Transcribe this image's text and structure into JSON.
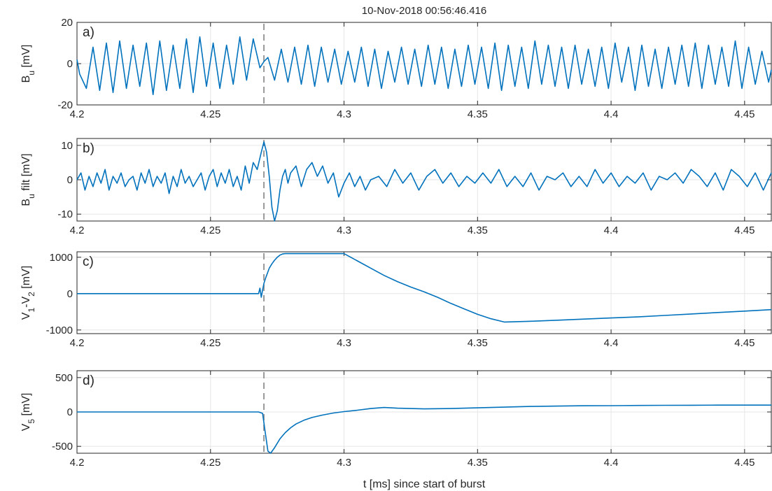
{
  "chart_data": {
    "title": "10-Nov-2018  00:56:46.416",
    "xlabel": "t [ms] since start of burst",
    "xlim": [
      4.2,
      4.46
    ],
    "xticks": [
      4.2,
      4.25,
      4.3,
      4.35,
      4.4,
      4.45
    ],
    "xtick_labels": [
      "4.2",
      "4.25",
      "4.3",
      "4.35",
      "4.4",
      "4.45"
    ],
    "marker_x": 4.27,
    "grid": true,
    "line_color": "#0072BD",
    "panels": [
      {
        "type": "line",
        "panel_label": "a)",
        "ylabel": "B_u [mV]",
        "ylabel_parts": {
          "base": "B",
          "sub": "u",
          "rest": " [mV]"
        },
        "ylim": [
          -20,
          20
        ],
        "yticks": [
          -20,
          0,
          20
        ],
        "ytick_labels": [
          "-20",
          "0",
          "20"
        ],
        "x": [
          4.2,
          4.201,
          4.2035,
          4.206,
          4.2085,
          4.211,
          4.2135,
          4.216,
          4.2185,
          4.221,
          4.2235,
          4.226,
          4.2285,
          4.231,
          4.2335,
          4.236,
          4.2385,
          4.241,
          4.2435,
          4.246,
          4.2485,
          4.251,
          4.2535,
          4.256,
          4.2585,
          4.261,
          4.2635,
          4.266,
          4.2685,
          4.27,
          4.2715,
          4.274,
          4.2765,
          4.279,
          4.2815,
          4.284,
          4.2865,
          4.289,
          4.2915,
          4.294,
          4.2965,
          4.299,
          4.3015,
          4.304,
          4.3065,
          4.309,
          4.3115,
          4.314,
          4.3165,
          4.319,
          4.3215,
          4.324,
          4.3265,
          4.329,
          4.3315,
          4.334,
          4.3365,
          4.339,
          4.3415,
          4.344,
          4.3465,
          4.349,
          4.3515,
          4.354,
          4.3565,
          4.359,
          4.3615,
          4.364,
          4.3665,
          4.369,
          4.3715,
          4.374,
          4.3765,
          4.379,
          4.3815,
          4.384,
          4.3865,
          4.389,
          4.3915,
          4.394,
          4.3965,
          4.399,
          4.4015,
          4.404,
          4.4065,
          4.409,
          4.4115,
          4.414,
          4.4165,
          4.419,
          4.4215,
          4.424,
          4.4265,
          4.429,
          4.4315,
          4.434,
          4.4365,
          4.439,
          4.4415,
          4.444,
          4.4465,
          4.449,
          4.4515,
          4.454,
          4.4565,
          4.459,
          4.46
        ],
        "y": [
          2,
          -5,
          -12,
          8,
          -13,
          10,
          -14,
          11,
          -12,
          9,
          -11,
          10,
          -15,
          11,
          -13,
          9,
          -12,
          12,
          -14,
          13,
          -11,
          10,
          -12,
          9,
          -10,
          13,
          -8,
          12,
          -2,
          1,
          3,
          -8,
          7,
          -9,
          8,
          -10,
          9,
          -11,
          8,
          -9,
          7,
          -10,
          6,
          -9,
          8,
          -11,
          7,
          -12,
          6,
          -9,
          8,
          -10,
          7,
          -11,
          9,
          -10,
          8,
          -12,
          7,
          -11,
          9,
          -10,
          8,
          -12,
          10,
          -13,
          9,
          -11,
          8,
          -12,
          11,
          -10,
          9,
          -11,
          8,
          -12,
          9,
          -10,
          7,
          -11,
          8,
          -12,
          10,
          -9,
          8,
          -13,
          9,
          -11,
          7,
          -12,
          8,
          -10,
          9,
          -11,
          10,
          -12,
          9,
          -10,
          8,
          -11,
          11,
          -12,
          8,
          -10,
          6,
          -9,
          -3
        ],
        "data_note": "approximate, read from the plot"
      },
      {
        "type": "line",
        "panel_label": "b)",
        "ylabel": "B_u filt [mV]",
        "ylabel_parts": {
          "base": "B",
          "sub": "u",
          "rest": " filt [mV]"
        },
        "ylim": [
          -12,
          12
        ],
        "yticks": [
          -10,
          0,
          10
        ],
        "ytick_labels": [
          "-10",
          "0",
          "10"
        ],
        "x": [
          4.2,
          4.2015,
          4.203,
          4.2045,
          4.206,
          4.2075,
          4.209,
          4.2105,
          4.212,
          4.2135,
          4.215,
          4.2165,
          4.218,
          4.2195,
          4.221,
          4.2225,
          4.224,
          4.2255,
          4.227,
          4.2285,
          4.23,
          4.2315,
          4.233,
          4.2345,
          4.236,
          4.2375,
          4.239,
          4.2405,
          4.242,
          4.2435,
          4.245,
          4.2465,
          4.248,
          4.2495,
          4.251,
          4.2525,
          4.254,
          4.2555,
          4.257,
          4.2585,
          4.26,
          4.2615,
          4.263,
          4.2645,
          4.266,
          4.2675,
          4.269,
          4.27,
          4.271,
          4.272,
          4.273,
          4.274,
          4.275,
          4.276,
          4.277,
          4.278,
          4.279,
          4.28,
          4.282,
          4.284,
          4.286,
          4.288,
          4.29,
          4.292,
          4.294,
          4.296,
          4.298,
          4.3,
          4.302,
          4.304,
          4.306,
          4.308,
          4.31,
          4.313,
          4.316,
          4.319,
          4.322,
          4.325,
          4.328,
          4.331,
          4.334,
          4.337,
          4.34,
          4.343,
          4.346,
          4.349,
          4.352,
          4.355,
          4.358,
          4.361,
          4.364,
          4.367,
          4.37,
          4.373,
          4.376,
          4.379,
          4.382,
          4.385,
          4.388,
          4.391,
          4.394,
          4.397,
          4.4,
          4.403,
          4.406,
          4.409,
          4.412,
          4.415,
          4.418,
          4.421,
          4.424,
          4.427,
          4.43,
          4.433,
          4.436,
          4.439,
          4.442,
          4.445,
          4.448,
          4.451,
          4.454,
          4.457,
          4.46
        ],
        "y": [
          0,
          2,
          -3,
          1,
          -2,
          2,
          -1,
          3,
          -3,
          1,
          -1,
          2,
          -2,
          0,
          1,
          -3,
          2,
          -1,
          3,
          -2,
          1,
          -1,
          2,
          -4,
          1,
          -2,
          3,
          -1,
          1,
          -2,
          0,
          2,
          -3,
          1,
          3,
          -2,
          2,
          -1,
          3,
          -2,
          1,
          -3,
          4,
          -1,
          5,
          3,
          8,
          11,
          8,
          1,
          -8,
          -12,
          -9,
          -3,
          1,
          3,
          -1,
          2,
          4,
          -2,
          3,
          5,
          1,
          4,
          -1,
          2,
          -5,
          -1,
          2,
          -2,
          1,
          -3,
          0,
          1,
          -2,
          3,
          -1,
          2,
          -3,
          1,
          3,
          -1,
          2,
          -2,
          1,
          -1,
          2,
          -1,
          3,
          -2,
          1,
          -2,
          2,
          -3,
          1,
          0,
          2,
          -2,
          1,
          -2,
          3,
          -1,
          2,
          -2,
          1,
          -1,
          2,
          -3,
          1,
          0,
          2,
          -1,
          3,
          1,
          -2,
          2,
          -3,
          3,
          1,
          -2,
          2,
          -3,
          2
        ],
        "data_note": "approximate, read from the plot"
      },
      {
        "type": "line",
        "panel_label": "c)",
        "ylabel": "V_1-V_2 [mV]",
        "ylabel_parts": {
          "base": "V",
          "sub": "1",
          "mid": "-V",
          "sub2": "2",
          "rest": " [mV]"
        },
        "ylim": [
          -1100,
          1150
        ],
        "yticks": [
          -1000,
          0,
          1000
        ],
        "ytick_labels": [
          "-1000",
          "0",
          "1000"
        ],
        "x": [
          4.2,
          4.26,
          4.268,
          4.2685,
          4.269,
          4.2695,
          4.27,
          4.2705,
          4.271,
          4.272,
          4.273,
          4.274,
          4.275,
          4.276,
          4.277,
          4.278,
          4.3,
          4.305,
          4.31,
          4.315,
          4.32,
          4.325,
          4.33,
          4.335,
          4.34,
          4.345,
          4.35,
          4.355,
          4.36,
          4.37,
          4.38,
          4.39,
          4.4,
          4.41,
          4.42,
          4.43,
          4.44,
          4.45,
          4.46
        ],
        "y": [
          0,
          0,
          0,
          150,
          -100,
          100,
          280,
          400,
          500,
          700,
          820,
          920,
          1000,
          1060,
          1090,
          1100,
          1100,
          900,
          700,
          500,
          330,
          180,
          50,
          -100,
          -270,
          -420,
          -570,
          -690,
          -780,
          -760,
          -730,
          -700,
          -670,
          -640,
          -600,
          -560,
          -520,
          -480,
          -440
        ],
        "data_note": "approximate, read from the plot"
      },
      {
        "type": "line",
        "panel_label": "d)",
        "ylabel": "V_5 [mV]",
        "ylabel_parts": {
          "base": "V",
          "sub": "5",
          "rest": " [mV]"
        },
        "ylim": [
          -600,
          600
        ],
        "yticks": [
          -500,
          0,
          500
        ],
        "ytick_labels": [
          "-500",
          "0",
          "500"
        ],
        "x": [
          4.2,
          4.23,
          4.26,
          4.268,
          4.2695,
          4.2705,
          4.2715,
          4.2725,
          4.274,
          4.276,
          4.278,
          4.28,
          4.282,
          4.285,
          4.288,
          4.292,
          4.296,
          4.3,
          4.305,
          4.31,
          4.315,
          4.32,
          4.325,
          4.33,
          4.34,
          4.35,
          4.36,
          4.37,
          4.38,
          4.39,
          4.4,
          4.41,
          4.42,
          4.43,
          4.44,
          4.45,
          4.46
        ],
        "y": [
          0,
          0,
          0,
          0,
          -20,
          -300,
          -570,
          -600,
          -520,
          -390,
          -300,
          -230,
          -175,
          -120,
          -80,
          -45,
          -15,
          5,
          25,
          50,
          65,
          55,
          50,
          45,
          50,
          60,
          70,
          80,
          85,
          90,
          92,
          95,
          97,
          98,
          100,
          100,
          100
        ],
        "data_note": "approximate, read from the plot"
      }
    ]
  }
}
